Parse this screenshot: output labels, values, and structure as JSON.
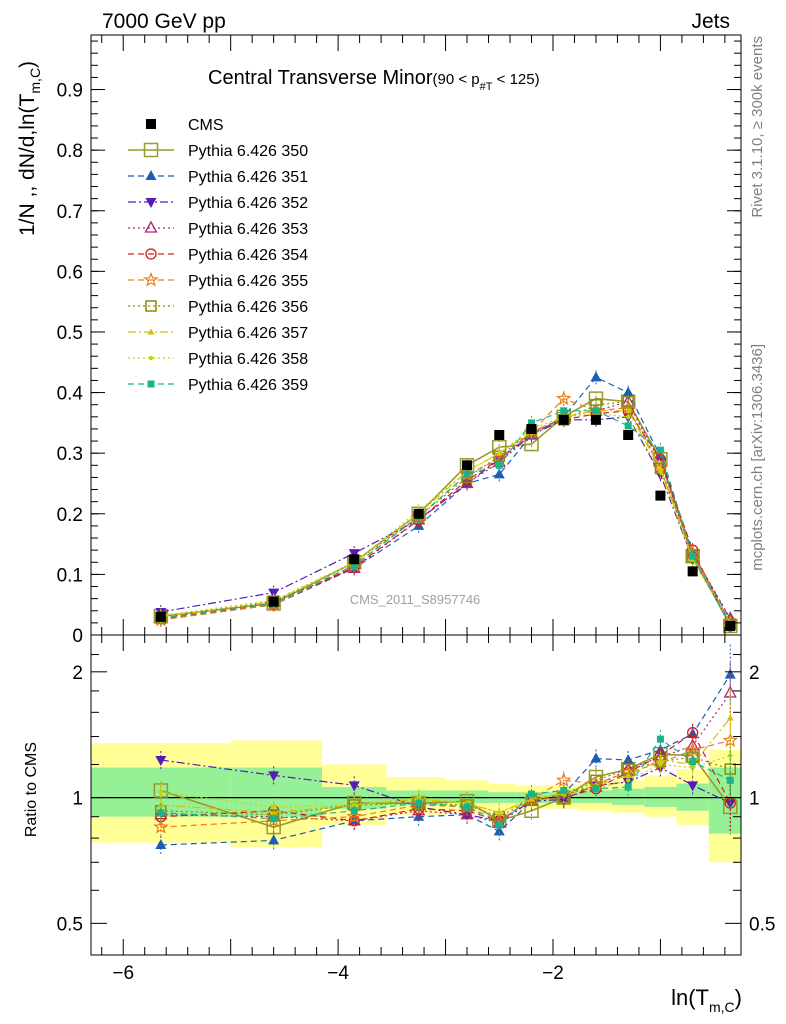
{
  "header": {
    "left": "7000 GeV pp",
    "right": "Jets"
  },
  "side_labels": {
    "rivet": "Rivet 3.1.10, ≥ 300k events",
    "mcplots": "mcplots.cern.ch [arXiv:1306.3436]"
  },
  "colors": {
    "cms": "#000000",
    "s350": "#9a9a2a",
    "s351": "#1a5fb4",
    "s352": "#5a1ab4",
    "s353": "#b4237a",
    "s354": "#d01c1c",
    "s355": "#ee7a1a",
    "s356": "#8a8a10",
    "s357": "#d4c200",
    "s358": "#c8d400",
    "s359": "#1ab48a",
    "band_inner": "#96f096",
    "band_outer": "#ffff96"
  },
  "chart_data": [
    {
      "type": "line",
      "panel": "main",
      "title": "Central Transverse Minor",
      "title_cut": "(90 < p",
      "title_cut_sub": "#T",
      "title_cut_end": " < 125)",
      "watermark": "CMS_2011_S8957746",
      "ylabel": "1/N ,, dN/d,ln(T",
      "ylabel_sub": "m,C",
      "ylabel_end": ")",
      "ylim": [
        0,
        0.99
      ],
      "y_ticks": [
        0,
        0.1,
        0.2,
        0.3,
        0.4,
        0.5,
        0.6,
        0.7,
        0.8,
        0.9
      ],
      "y_tick_labels": [
        "0",
        "0.1",
        "0.2",
        "0.3",
        "0.4",
        "0.5",
        "0.6",
        "0.7",
        "0.8",
        "0.9"
      ],
      "xlim": [
        -6.3,
        -0.25
      ],
      "x": [
        -5.65,
        -4.6,
        -3.85,
        -3.25,
        -2.8,
        -2.5,
        -2.2,
        -1.9,
        -1.6,
        -1.3,
        -1.0,
        -0.7,
        -0.35
      ],
      "legend_position": "top-left",
      "series": [
        {
          "name": "CMS",
          "style": "data",
          "marker": "square-filled",
          "color_key": "cms",
          "values": [
            0.03,
            0.055,
            0.125,
            0.2,
            0.28,
            0.33,
            0.34,
            0.355,
            0.355,
            0.33,
            0.23,
            0.105,
            0.015
          ]
        },
        {
          "name": "Pythia 6.426 350",
          "style": "solid",
          "marker": "square-open-big",
          "color_key": "s350",
          "values": [
            0.031,
            0.052,
            0.12,
            0.2,
            0.28,
            0.31,
            0.315,
            0.36,
            0.39,
            0.385,
            0.29,
            0.13,
            0.015
          ]
        },
        {
          "name": "Pythia 6.426 351",
          "style": "dashed",
          "marker": "triangle-up-filled",
          "color_key": "s351",
          "values": [
            0.025,
            0.05,
            0.11,
            0.18,
            0.25,
            0.265,
            0.33,
            0.36,
            0.425,
            0.4,
            0.295,
            0.135,
            0.025
          ]
        },
        {
          "name": "Pythia 6.426 352",
          "style": "dashdot",
          "marker": "triangle-down-filled",
          "color_key": "s352",
          "values": [
            0.038,
            0.07,
            0.135,
            0.19,
            0.25,
            0.29,
            0.33,
            0.355,
            0.355,
            0.36,
            0.265,
            0.125,
            0.02
          ]
        },
        {
          "name": "Pythia 6.426 353",
          "style": "dotted",
          "marker": "triangle-up-open",
          "color_key": "s353",
          "values": [
            0.028,
            0.055,
            0.11,
            0.19,
            0.25,
            0.285,
            0.33,
            0.36,
            0.37,
            0.385,
            0.285,
            0.135,
            0.027
          ]
        },
        {
          "name": "Pythia 6.426 354",
          "style": "dashed",
          "marker": "circle-open",
          "color_key": "s354",
          "values": [
            0.027,
            0.051,
            0.112,
            0.19,
            0.255,
            0.29,
            0.335,
            0.355,
            0.365,
            0.37,
            0.29,
            0.14,
            0.015
          ]
        },
        {
          "name": "Pythia 6.426 355",
          "style": "dashed",
          "marker": "star-open",
          "color_key": "s355",
          "values": [
            0.025,
            0.05,
            0.115,
            0.195,
            0.265,
            0.29,
            0.335,
            0.39,
            0.37,
            0.375,
            0.275,
            0.135,
            0.02
          ]
        },
        {
          "name": "Pythia 6.426 356",
          "style": "dotted",
          "marker": "square-open",
          "color_key": "s356",
          "values": [
            0.029,
            0.056,
            0.12,
            0.195,
            0.26,
            0.295,
            0.335,
            0.355,
            0.38,
            0.385,
            0.275,
            0.13,
            0.018
          ]
        },
        {
          "name": "Pythia 6.426 357",
          "style": "dashdot",
          "marker": "tri-small",
          "color_key": "s357",
          "values": [
            0.03,
            0.055,
            0.12,
            0.2,
            0.27,
            0.3,
            0.335,
            0.36,
            0.37,
            0.37,
            0.275,
            0.125,
            0.02
          ]
        },
        {
          "name": "Pythia 6.426 358",
          "style": "dotted",
          "marker": "dot-small",
          "color_key": "s358",
          "values": [
            0.032,
            0.057,
            0.12,
            0.205,
            0.27,
            0.3,
            0.34,
            0.36,
            0.365,
            0.36,
            0.27,
            0.125,
            0.018
          ]
        },
        {
          "name": "Pythia 6.426 359",
          "style": "dashed",
          "marker": "square-filled-small",
          "color_key": "s359",
          "values": [
            0.028,
            0.052,
            0.115,
            0.195,
            0.265,
            0.28,
            0.35,
            0.37,
            0.37,
            0.345,
            0.305,
            0.13,
            0.016
          ]
        }
      ]
    },
    {
      "type": "line",
      "panel": "ratio",
      "ylabel": "Ratio to CMS",
      "xlabel": "ln(T",
      "xlabel_sub": "m,C",
      "xlabel_end": ")",
      "y_scale": "log",
      "ylim": [
        0.42,
        2.45
      ],
      "y_ticks": [
        0.5,
        1,
        2
      ],
      "y_tick_labels": [
        "0.5",
        "1",
        "2"
      ],
      "x_ticks": [
        -6,
        -4,
        -2
      ],
      "x_tick_labels": [
        "−6",
        "−4",
        "−2"
      ],
      "reference_line": 1,
      "bands": [
        {
          "x0": -6.3,
          "x1": -5.0,
          "inner": [
            0.9,
            1.18
          ],
          "outer": [
            0.78,
            1.35
          ]
        },
        {
          "x0": -5.0,
          "x1": -4.15,
          "inner": [
            0.9,
            1.18
          ],
          "outer": [
            0.76,
            1.37
          ]
        },
        {
          "x0": -4.15,
          "x1": -3.55,
          "inner": [
            0.94,
            1.06
          ],
          "outer": [
            0.86,
            1.2
          ]
        },
        {
          "x0": -3.55,
          "x1": -3.0,
          "inner": [
            0.96,
            1.04
          ],
          "outer": [
            0.91,
            1.12
          ]
        },
        {
          "x0": -3.0,
          "x1": -2.6,
          "inner": [
            0.97,
            1.04
          ],
          "outer": [
            0.92,
            1.1
          ]
        },
        {
          "x0": -2.6,
          "x1": -2.35,
          "inner": [
            0.97,
            1.03
          ],
          "outer": [
            0.93,
            1.08
          ]
        },
        {
          "x0": -2.35,
          "x1": -2.05,
          "inner": [
            0.97,
            1.03
          ],
          "outer": [
            0.94,
            1.07
          ]
        },
        {
          "x0": -2.05,
          "x1": -1.75,
          "inner": [
            0.97,
            1.03
          ],
          "outer": [
            0.94,
            1.07
          ]
        },
        {
          "x0": -1.75,
          "x1": -1.45,
          "inner": [
            0.97,
            1.04
          ],
          "outer": [
            0.93,
            1.08
          ]
        },
        {
          "x0": -1.45,
          "x1": -1.15,
          "inner": [
            0.96,
            1.05
          ],
          "outer": [
            0.92,
            1.1
          ]
        },
        {
          "x0": -1.15,
          "x1": -0.85,
          "inner": [
            0.95,
            1.06
          ],
          "outer": [
            0.9,
            1.13
          ]
        },
        {
          "x0": -0.85,
          "x1": -0.55,
          "inner": [
            0.93,
            1.08
          ],
          "outer": [
            0.86,
            1.17
          ]
        },
        {
          "x0": -0.55,
          "x1": -0.25,
          "inner": [
            0.82,
            1.18
          ],
          "outer": [
            0.7,
            1.3
          ]
        }
      ],
      "series": [
        {
          "name": "Pythia 6.426 350",
          "values": [
            1.04,
            0.85,
            0.97,
            0.97,
            0.98,
            0.88,
            0.93,
            1.0,
            1.12,
            1.17,
            1.27,
            1.26,
            0.95
          ]
        },
        {
          "name": "Pythia 6.426 351",
          "values": [
            0.77,
            0.79,
            0.88,
            0.9,
            0.91,
            0.83,
            0.98,
            1.02,
            1.24,
            1.23,
            1.3,
            1.42,
            1.97
          ]
        },
        {
          "name": "Pythia 6.426 352",
          "values": [
            1.23,
            1.13,
            1.07,
            0.95,
            0.91,
            0.88,
            0.98,
            0.99,
            1.07,
            1.09,
            1.18,
            1.07,
            0.97
          ]
        },
        {
          "name": "Pythia 6.426 353",
          "values": [
            0.91,
            0.9,
            0.88,
            0.93,
            0.91,
            0.87,
            0.98,
            1.02,
            1.06,
            1.17,
            1.25,
            1.33,
            1.78
          ]
        },
        {
          "name": "Pythia 6.426 354",
          "values": [
            0.9,
            0.93,
            0.88,
            0.94,
            0.93,
            0.88,
            0.99,
            1.0,
            1.05,
            1.15,
            1.26,
            1.43,
            0.97
          ]
        },
        {
          "name": "Pythia 6.426 355",
          "values": [
            0.85,
            0.88,
            0.9,
            0.96,
            0.95,
            0.88,
            0.99,
            1.1,
            1.08,
            1.15,
            1.21,
            1.3,
            1.37
          ]
        },
        {
          "name": "Pythia 6.426 356",
          "values": [
            0.93,
            0.91,
            0.96,
            0.97,
            0.96,
            0.9,
            0.99,
            1.0,
            1.1,
            1.17,
            1.22,
            1.25,
            1.17
          ]
        },
        {
          "name": "Pythia 6.426 357",
          "values": [
            0.96,
            0.92,
            0.96,
            0.99,
            0.97,
            0.92,
            0.99,
            1.02,
            1.07,
            1.13,
            1.23,
            1.2,
            1.55
          ]
        },
        {
          "name": "Pythia 6.426 358",
          "values": [
            1.03,
            0.95,
            0.96,
            1.0,
            0.97,
            0.92,
            1.0,
            1.02,
            1.05,
            1.1,
            1.2,
            1.18,
            1.26
          ]
        },
        {
          "name": "Pythia 6.426 359",
          "values": [
            0.92,
            0.89,
            0.93,
            0.97,
            0.95,
            0.86,
            1.02,
            1.04,
            1.05,
            1.06,
            1.38,
            1.22,
            1.1
          ]
        }
      ]
    }
  ]
}
